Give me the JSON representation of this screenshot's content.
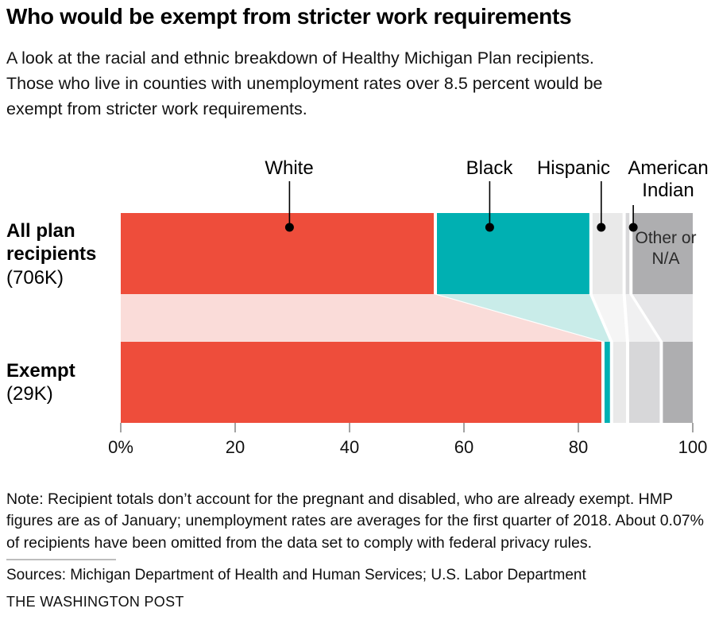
{
  "header": {
    "title": "Who would be exempt from stricter work requirements",
    "subtitle": "A look at the racial and ethnic breakdown of Healthy Michigan Plan recipients. Those who live in counties with unemployment rates over 8.5 percent would be exempt from stricter work requirements."
  },
  "chart_data": {
    "type": "bar",
    "subtype": "horizontal-stacked-with-flow-connectors",
    "title": "Who would be exempt from stricter work requirements",
    "categories": [
      "White",
      "Black",
      "Hispanic",
      "American Indian",
      "Other or N/A"
    ],
    "colors": [
      "#ee4d3b",
      "#00b0b2",
      "#e9e9e9",
      "#d7d7d9",
      "#aeaeb0"
    ],
    "connector_tints": [
      "#fadcd9",
      "#c9ece9",
      "#f5f5f5",
      "#f0f0f1",
      "#e6e6e8"
    ],
    "rows": [
      {
        "label": "All plan recipients",
        "total": "(706K)",
        "values": [
          55.0,
          27.2,
          5.8,
          1.2,
          10.8
        ]
      },
      {
        "label": "Exempt",
        "total": "(29K)",
        "values": [
          84.3,
          1.5,
          2.8,
          5.9,
          5.5
        ]
      }
    ],
    "xlim": [
      0,
      100
    ],
    "tick_values": [
      0,
      20,
      40,
      60,
      80,
      100
    ],
    "xlabel_ticks": [
      "0%",
      "20",
      "40",
      "60",
      "80",
      "100"
    ],
    "grid": "off",
    "legend_position": "top-callouts",
    "callout_anchors_pct": [
      29.5,
      64.5,
      84.0,
      89.6
    ]
  },
  "footer": {
    "note": "Note: Recipient totals don’t account for the pregnant and disabled, who are already exempt. HMP figures are as of January; unemployment rates are averages for the first quarter of 2018. About 0.07% of recipients have been omitted from the data set to comply with federal privacy rules.",
    "sources": "Sources: Michigan Department of Health and Human Services; U.S. Labor Department",
    "credit": "THE WASHINGTON POST"
  }
}
